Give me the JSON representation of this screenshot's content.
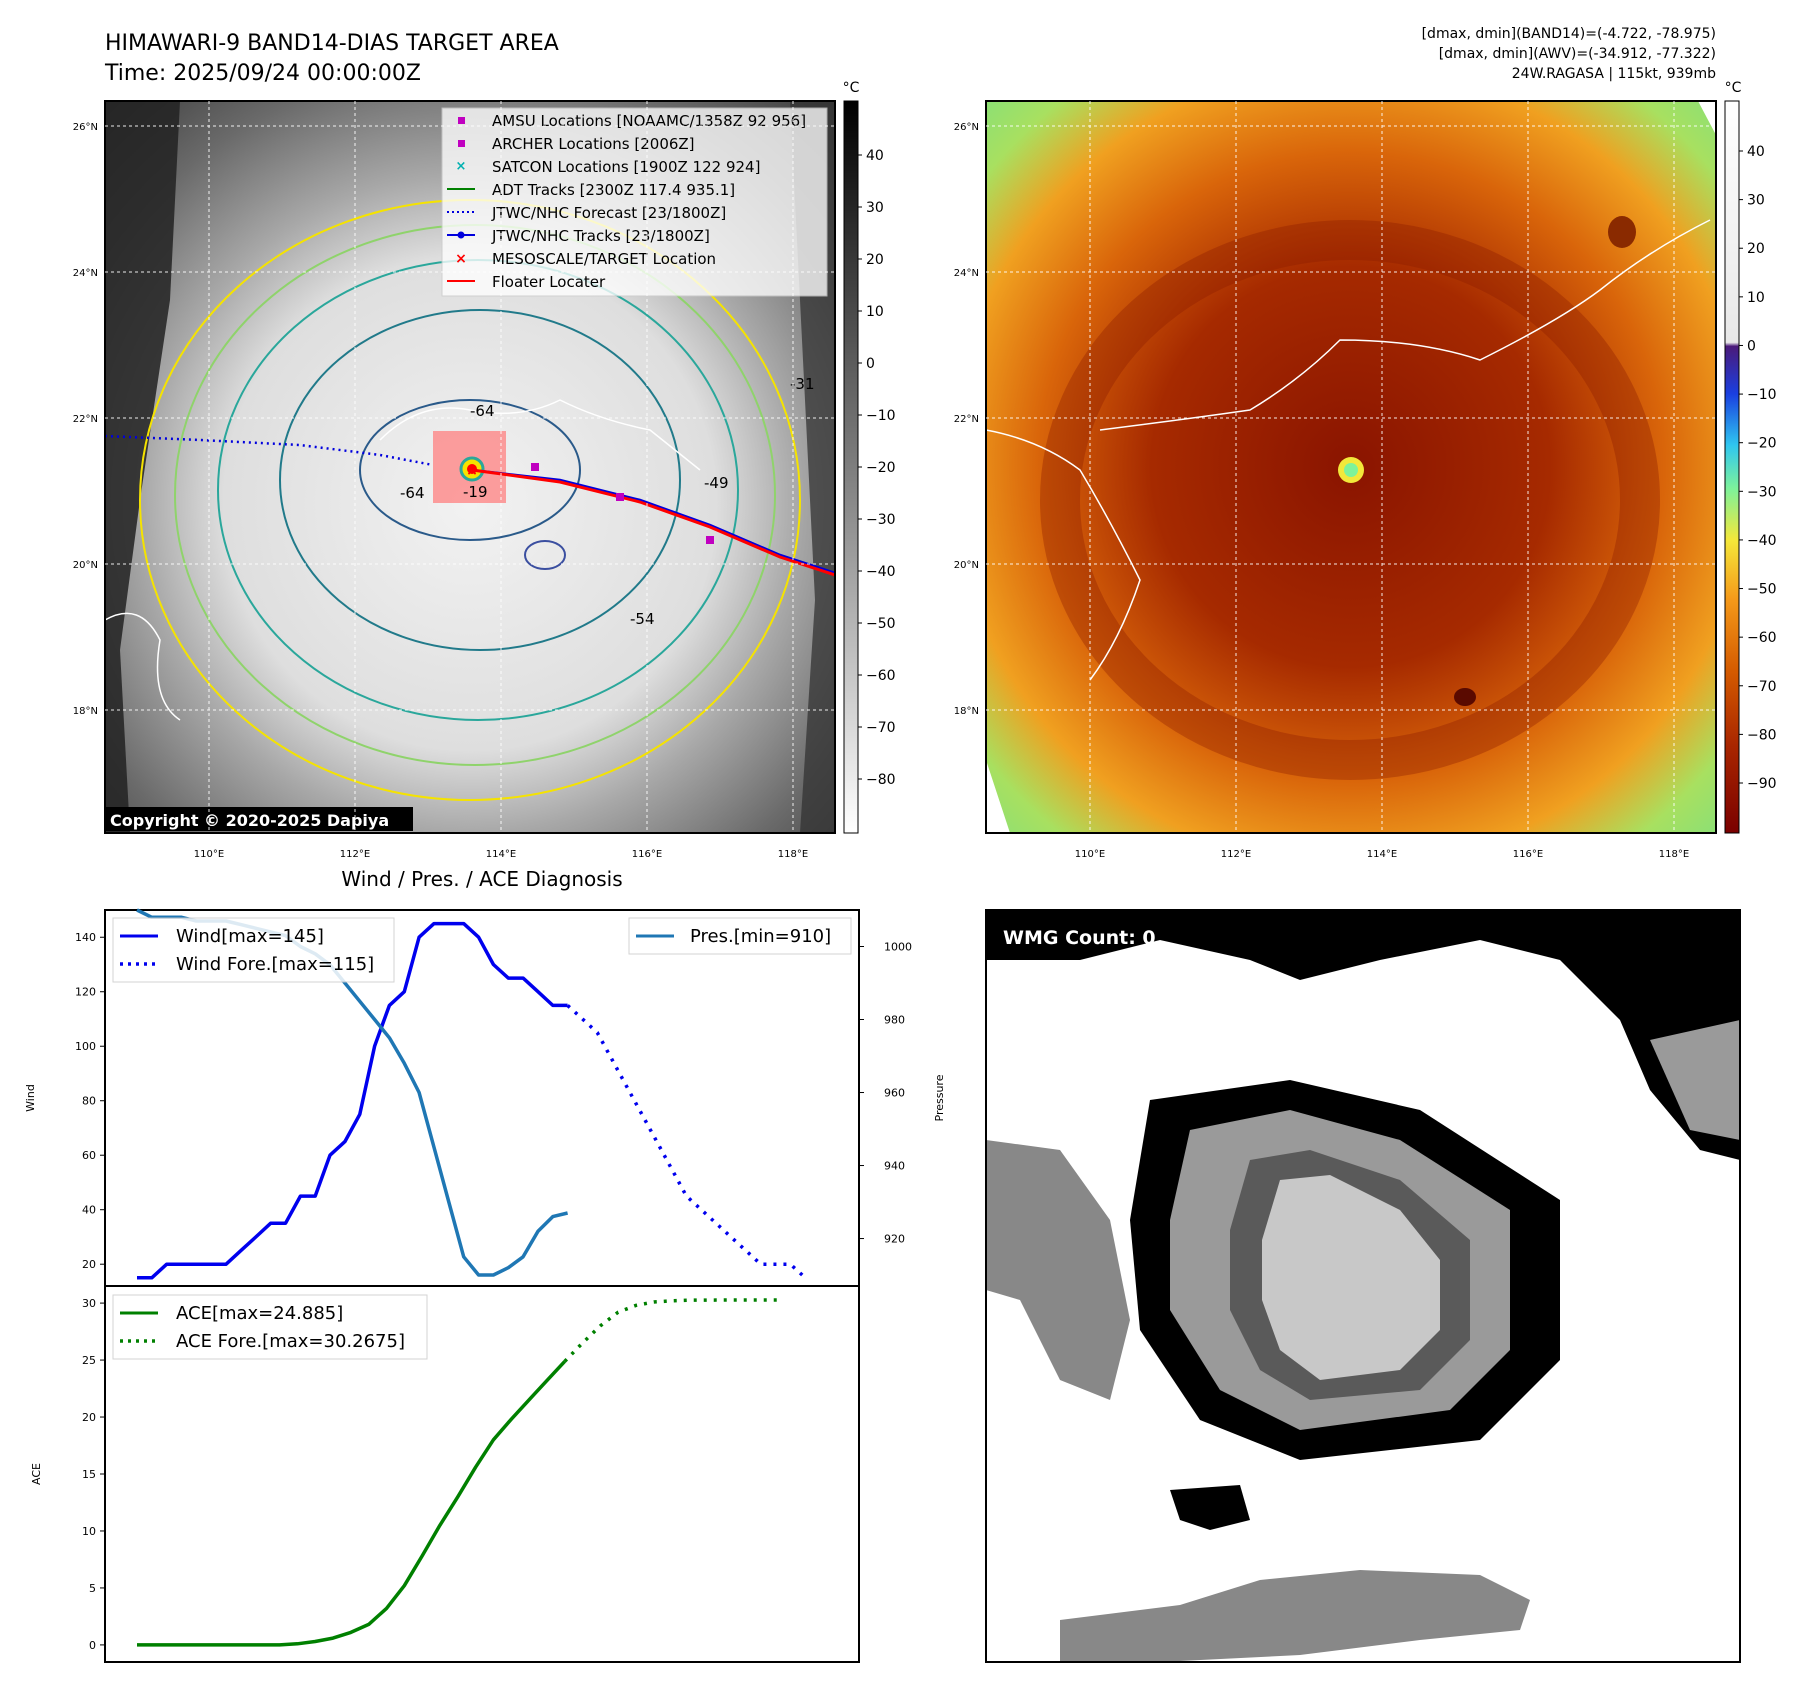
{
  "header": {
    "title_line1": "HIMAWARI-9 BAND14-DIAS TARGET AREA",
    "title_line2": "Time: 2025/09/24 00:00:00Z",
    "stats_line1": "[dmax, dmin](BAND14)=(-4.722, -78.975)",
    "stats_line2": "[dmax, dmin](AWV)=(-34.912, -77.322)",
    "stats_line3": "24W.RAGASA | 115kt, 939mb"
  },
  "map": {
    "lat_labels": [
      "26°N",
      "24°N",
      "22°N",
      "20°N",
      "18°N"
    ],
    "lon_labels": [
      "110°E",
      "112°E",
      "114°E",
      "116°E",
      "118°E"
    ],
    "copyright": "Copyright © 2020-2025 Dapiya",
    "cbar_unit": "°C",
    "cbar1_ticks": [
      "40",
      "30",
      "20",
      "10",
      "0",
      "−10",
      "−20",
      "−30",
      "−40",
      "−50",
      "−60",
      "−70",
      "−80"
    ],
    "cbar2_ticks": [
      "40",
      "30",
      "20",
      "10",
      "0",
      "−10",
      "−20",
      "−30",
      "−40",
      "−50",
      "−60",
      "−70",
      "−80",
      "−90"
    ],
    "contour_labels": [
      "-64",
      "-64",
      "-54",
      "-31",
      "-19",
      "-49"
    ],
    "legend": [
      {
        "label": "AMSU Locations [NOAAMC/1358Z 92 956]",
        "color": "#c000c0"
      },
      {
        "label": "ARCHER Locations [2006Z]",
        "color": "#c000c0"
      },
      {
        "label": "SATCON Locations [1900Z 122 924]",
        "color": "#00b0b0"
      },
      {
        "label": "ADT Tracks [2300Z 117.4 935.1]",
        "color": "#008000"
      },
      {
        "label": "JTWC/NHC Forecast [23/1800Z]",
        "color": "#0000dd"
      },
      {
        "label": "JTWC/NHC Tracks [23/1800Z]",
        "color": "#0000dd"
      },
      {
        "label": "MESOSCALE/TARGET Location",
        "color": "#ff0000"
      },
      {
        "label": "Floater Locater",
        "color": "#ff0000"
      }
    ]
  },
  "wmg": {
    "label": "WMG Count: 0"
  },
  "chart_data": [
    {
      "type": "line",
      "title": "Wind / Pres. / ACE Diagnosis",
      "ylabel": "Wind",
      "y2label": "Pressure",
      "ylim": [
        12,
        150
      ],
      "y2lim": [
        907,
        1010
      ],
      "yticks": [
        20,
        40,
        60,
        80,
        100,
        120,
        140
      ],
      "y2ticks": [
        920,
        940,
        960,
        980,
        1000
      ],
      "legend_left": [
        "Wind[max=145]",
        "Wind Fore.[max=115]"
      ],
      "legend_right": [
        "Pres.[min=910]"
      ],
      "series": [
        {
          "name": "Wind[max=145]",
          "color": "#0000ee",
          "style": "solid",
          "values": [
            15,
            15,
            20,
            20,
            20,
            20,
            20,
            25,
            30,
            35,
            35,
            45,
            45,
            60,
            65,
            75,
            100,
            115,
            120,
            140,
            145,
            145,
            145,
            140,
            130,
            125,
            125,
            120,
            115,
            115
          ]
        },
        {
          "name": "Wind Fore.[max=115]",
          "color": "#0000ee",
          "style": "dotted",
          "x0": 29,
          "values": [
            115,
            110,
            105,
            95,
            85,
            75,
            65,
            55,
            45,
            40,
            35,
            30,
            25,
            20,
            20,
            20,
            15
          ]
        },
        {
          "name": "Pres.[min=910]",
          "color": "#1f77b4",
          "style": "solid",
          "axis": "right",
          "values": [
            1010,
            1008,
            1008,
            1008,
            1007,
            1007,
            1007,
            1006,
            1005,
            1004,
            1003,
            1000,
            998,
            995,
            990,
            985,
            980,
            975,
            968,
            960,
            945,
            930,
            915,
            910,
            910,
            912,
            915,
            922,
            926,
            927
          ]
        }
      ]
    },
    {
      "type": "line",
      "ylabel": "ACE",
      "ylim": [
        -1.5,
        31.5
      ],
      "yticks": [
        0,
        5,
        10,
        15,
        20,
        25,
        30
      ],
      "legend": [
        "ACE[max=24.885]",
        "ACE Fore.[max=30.2675]"
      ],
      "series": [
        {
          "name": "ACE[max=24.885]",
          "color": "#008000",
          "style": "solid",
          "values": [
            0,
            0,
            0,
            0,
            0,
            0,
            0,
            0,
            0,
            0.1,
            0.3,
            0.6,
            1.1,
            1.8,
            3.2,
            5.2,
            7.8,
            10.5,
            13.0,
            15.6,
            18.0,
            19.8,
            21.5,
            23.2,
            24.885
          ]
        },
        {
          "name": "ACE Fore.[max=30.2675]",
          "color": "#008000",
          "style": "dotted",
          "x0": 24,
          "values": [
            24.885,
            26.5,
            28.0,
            29.2,
            29.8,
            30.1,
            30.2,
            30.25,
            30.26,
            30.2675,
            30.2675,
            30.2675,
            30.2675
          ]
        }
      ]
    }
  ]
}
